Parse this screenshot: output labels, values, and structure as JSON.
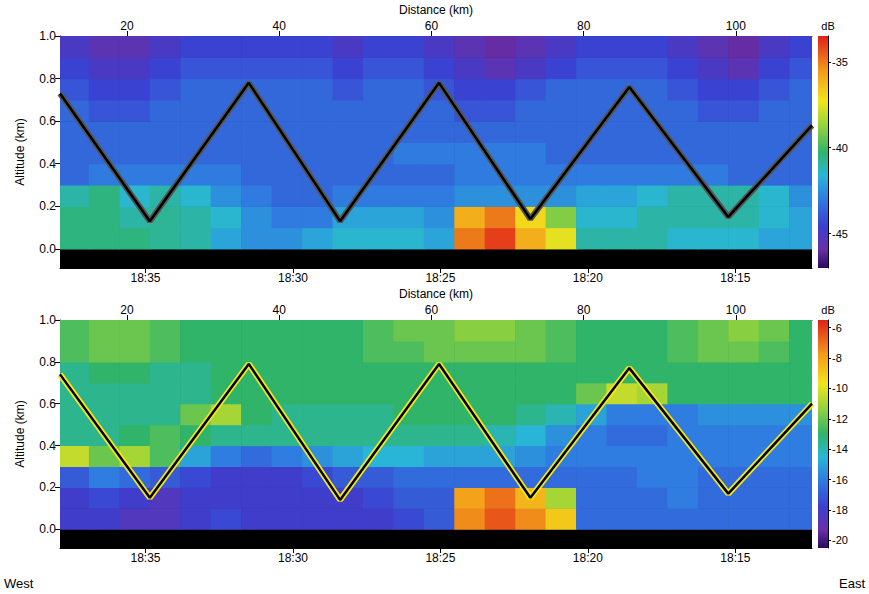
{
  "chart_data": [
    {
      "type": "heatmap",
      "xlabel": "Distance (km)",
      "ylabel": "Altitude (km)",
      "xlim": [
        11.2,
        110
      ],
      "xticks": [
        20,
        40,
        60,
        80,
        100
      ],
      "x2lim": [
        1117.9,
        1092.4
      ],
      "x2ticks": [
        {
          "value": 1115,
          "label": "18:35"
        },
        {
          "value": 1110,
          "label": "18:30"
        },
        {
          "value": 1105,
          "label": "18:25"
        },
        {
          "value": 1100,
          "label": "18:20"
        },
        {
          "value": 1095,
          "label": "18:15"
        }
      ],
      "ylim": [
        -0.09,
        1.0
      ],
      "yticks": [
        {
          "value": 0,
          "label": "0.0"
        },
        0.2,
        0.4,
        0.6,
        0.8,
        {
          "value": 1,
          "label": "1.0"
        }
      ],
      "colorbar": {
        "label": "dB",
        "lim": [
          -47,
          -33.5
        ],
        "ticks": [
          -35,
          -40,
          -45
        ]
      },
      "cells": {
        "x": [
          13,
          17,
          21,
          25,
          29,
          33,
          37,
          41,
          45,
          49,
          53,
          57,
          61,
          65,
          69,
          73,
          77,
          81,
          85,
          89,
          93,
          97,
          101,
          105,
          109
        ],
        "y": [
          0.05,
          0.15,
          0.25,
          0.35,
          0.45,
          0.55,
          0.65,
          0.75,
          0.85,
          0.95
        ],
        "values": [
          [
            -40.5,
            -40.5,
            -40.5,
            -40.8,
            -41,
            -42,
            -42.5,
            -42.5,
            -42,
            -41.5,
            -41.5,
            -41.5,
            -42,
            -35,
            -34,
            -36,
            -37.5,
            -41,
            -41,
            -41,
            -41.5,
            -41.5,
            -41.5,
            -42,
            -42
          ],
          [
            -40.5,
            -40.5,
            -41,
            -40.8,
            -41,
            -41.5,
            -42.5,
            -43,
            -43,
            -42,
            -42,
            -42,
            -42.5,
            -36,
            -35,
            -37,
            -39,
            -41.5,
            -41.5,
            -41,
            -41,
            -41,
            -41,
            -41.5,
            -42
          ],
          [
            -41,
            -40.5,
            -41.5,
            -41,
            -41.5,
            -42.5,
            -43,
            -43.5,
            -43.5,
            -43,
            -43,
            -43,
            -43,
            -42.5,
            -42.5,
            -42.5,
            -42.5,
            -42,
            -42,
            -41.5,
            -41,
            -41,
            -41,
            -41.5,
            -42.5
          ],
          [
            -43.5,
            -43,
            -43,
            -43,
            -43,
            -43,
            -43.5,
            -43.5,
            -43.5,
            -43.5,
            -43.5,
            -43.5,
            -43.5,
            -43,
            -43,
            -43,
            -43,
            -43,
            -43,
            -43,
            -43,
            -43,
            -43.5,
            -43.5,
            -43.5
          ],
          [
            -43.5,
            -43.5,
            -43.5,
            -43.5,
            -43.5,
            -43.5,
            -43.5,
            -43.5,
            -43.5,
            -43.5,
            -43.5,
            -43,
            -43,
            -43,
            -43,
            -43,
            -43.5,
            -43.5,
            -43.5,
            -43.5,
            -43.5,
            -43.5,
            -43.5,
            -43.5,
            -43.5
          ],
          [
            -43.5,
            -43.5,
            -43.5,
            -43.5,
            -43.5,
            -43.5,
            -43.5,
            -43.5,
            -43.5,
            -43.5,
            -43.5,
            -43.5,
            -43.5,
            -43.5,
            -43.5,
            -43.5,
            -43.5,
            -43.5,
            -43.5,
            -43.5,
            -43.5,
            -43.5,
            -43.5,
            -43.5,
            -43.5
          ],
          [
            -43.5,
            -44,
            -44,
            -43.5,
            -43.5,
            -43.5,
            -43.5,
            -43.5,
            -43.5,
            -43.5,
            -43.5,
            -43.5,
            -43.5,
            -44,
            -44,
            -43.5,
            -43.5,
            -43.5,
            -43.5,
            -43.5,
            -43.5,
            -44,
            -44,
            -43.5,
            -43.5
          ],
          [
            -44,
            -44.5,
            -44.5,
            -44,
            -43.5,
            -43.5,
            -43.5,
            -43.5,
            -43.5,
            -44,
            -43.5,
            -43.5,
            -44,
            -44.5,
            -44.5,
            -44,
            -43.5,
            -43.5,
            -43.5,
            -43.5,
            -44,
            -44.5,
            -44.5,
            -44,
            -43.5
          ],
          [
            -44.5,
            -45,
            -45,
            -44.5,
            -44,
            -44,
            -44,
            -44,
            -44,
            -44.5,
            -44,
            -44,
            -44.5,
            -45,
            -45.5,
            -45,
            -44.5,
            -44,
            -44,
            -44,
            -44.5,
            -45,
            -45.5,
            -44.5,
            -44
          ],
          [
            -45,
            -45.5,
            -45.5,
            -45,
            -44.5,
            -44.5,
            -44.5,
            -44.5,
            -44.5,
            -45,
            -44.5,
            -44.5,
            -45,
            -45.5,
            -46,
            -45.5,
            -45,
            -44.5,
            -44.5,
            -44.5,
            -45,
            -45.5,
            -46,
            -45,
            -44.5
          ]
        ]
      },
      "track": {
        "x": [
          11.2,
          23,
          36,
          48,
          61,
          73,
          86,
          99,
          110
        ],
        "y": [
          0.73,
          0.13,
          0.78,
          0.13,
          0.78,
          0.14,
          0.76,
          0.15,
          0.58
        ],
        "color": "#000000"
      }
    },
    {
      "type": "heatmap",
      "xlabel": "Distance (km)",
      "ylabel": "Altitude (km)",
      "xlim": [
        11.2,
        110
      ],
      "xticks": [
        20,
        40,
        60,
        80,
        100
      ],
      "x2lim": [
        1117.9,
        1092.4
      ],
      "x2ticks": [
        {
          "value": 1115,
          "label": "18:35"
        },
        {
          "value": 1110,
          "label": "18:30"
        },
        {
          "value": 1105,
          "label": "18:25"
        },
        {
          "value": 1100,
          "label": "18:20"
        },
        {
          "value": 1095,
          "label": "18:15"
        }
      ],
      "ylim": [
        -0.09,
        1.0
      ],
      "yticks": [
        {
          "value": 0,
          "label": "0.0"
        },
        0.2,
        0.4,
        0.6,
        0.8,
        {
          "value": 1,
          "label": "1.0"
        }
      ],
      "colorbar": {
        "label": "dB",
        "lim": [
          -20.5,
          -5.5
        ],
        "ticks": [
          -6,
          -8,
          -10,
          -12,
          -14,
          -16,
          -18,
          -20
        ]
      },
      "cells": {
        "x": [
          13,
          17,
          21,
          25,
          29,
          33,
          37,
          41,
          45,
          49,
          53,
          57,
          61,
          65,
          69,
          73,
          77,
          81,
          85,
          89,
          93,
          97,
          101,
          105,
          109
        ],
        "y": [
          0.05,
          0.15,
          0.25,
          0.35,
          0.45,
          0.55,
          0.65,
          0.75,
          0.85,
          0.95
        ],
        "values": [
          [
            -18,
            -18,
            -18.5,
            -18.5,
            -18,
            -17.5,
            -18,
            -18,
            -18,
            -18,
            -18,
            -17.5,
            -17,
            -7.5,
            -6.5,
            -7.5,
            -9,
            -16.5,
            -16.5,
            -16.5,
            -16.5,
            -16.5,
            -16.5,
            -16.5,
            -16.5
          ],
          [
            -18,
            -17.5,
            -18,
            -18.5,
            -18,
            -18,
            -18,
            -18,
            -18,
            -18,
            -17.5,
            -17,
            -17,
            -8,
            -7,
            -8.5,
            -11,
            -16.5,
            -16.5,
            -16.5,
            -16,
            -16.5,
            -16.5,
            -16.5,
            -16.5
          ],
          [
            -17,
            -16,
            -16.5,
            -17,
            -17.5,
            -18,
            -18,
            -18,
            -17.5,
            -17,
            -17,
            -16.5,
            -16.5,
            -16.5,
            -16.5,
            -16.5,
            -16.5,
            -16.5,
            -16.5,
            -16,
            -16,
            -16.5,
            -16.5,
            -16.5,
            -16.5
          ],
          [
            -10.5,
            -12,
            -11,
            -12.5,
            -15,
            -16,
            -16.5,
            -16,
            -15.5,
            -15,
            -14.5,
            -14.5,
            -15,
            -15,
            -15,
            -15.5,
            -16,
            -16,
            -16,
            -16,
            -16,
            -16,
            -16,
            -16,
            -16
          ],
          [
            -13.5,
            -13.5,
            -13,
            -12.5,
            -13,
            -13.5,
            -13.5,
            -13.5,
            -13.5,
            -13.5,
            -13.5,
            -13.5,
            -13.5,
            -13.5,
            -14,
            -14.5,
            -15.5,
            -16,
            -16.5,
            -16.5,
            -16,
            -16,
            -16,
            -16,
            -16
          ],
          [
            -13.5,
            -13.5,
            -13.5,
            -13.5,
            -12,
            -11,
            -13,
            -13.5,
            -13.5,
            -13.5,
            -13.5,
            -13,
            -13,
            -13,
            -13,
            -13.5,
            -14,
            -15,
            -16,
            -16,
            -16,
            -15.5,
            -15.5,
            -15.5,
            -15.5
          ],
          [
            -13.5,
            -13.5,
            -13.5,
            -13.5,
            -13.5,
            -13,
            -13,
            -13,
            -13,
            -13,
            -13,
            -13,
            -13,
            -13,
            -13,
            -13,
            -13,
            -12,
            -10.5,
            -11,
            -13,
            -13,
            -13,
            -13,
            -13
          ],
          [
            -13.5,
            -13,
            -13,
            -13.5,
            -13.5,
            -13,
            -13,
            -13,
            -13,
            -13,
            -13,
            -13,
            -13,
            -13,
            -13,
            -13,
            -13,
            -13,
            -13,
            -13,
            -13,
            -13,
            -13,
            -13,
            -13
          ],
          [
            -12.5,
            -12,
            -12,
            -12.5,
            -13,
            -13,
            -13,
            -13,
            -13,
            -13,
            -12.5,
            -12.5,
            -12,
            -12,
            -12,
            -12,
            -12.5,
            -13,
            -13,
            -13,
            -12.5,
            -12,
            -12,
            -12.5,
            -13
          ],
          [
            -12.5,
            -12,
            -12,
            -12.5,
            -13,
            -13,
            -13,
            -13,
            -13,
            -13,
            -12.5,
            -12,
            -12,
            -11.5,
            -11.5,
            -12,
            -12.5,
            -13,
            -13,
            -13,
            -12.5,
            -12,
            -11.5,
            -12,
            -13
          ]
        ]
      },
      "track": {
        "x": [
          11.2,
          23,
          36,
          48,
          61,
          73,
          86,
          99,
          110
        ],
        "y": [
          0.74,
          0.15,
          0.79,
          0.14,
          0.79,
          0.15,
          0.77,
          0.17,
          0.6
        ],
        "color": "#000000"
      },
      "annotations": [
        "West",
        "East"
      ]
    }
  ]
}
